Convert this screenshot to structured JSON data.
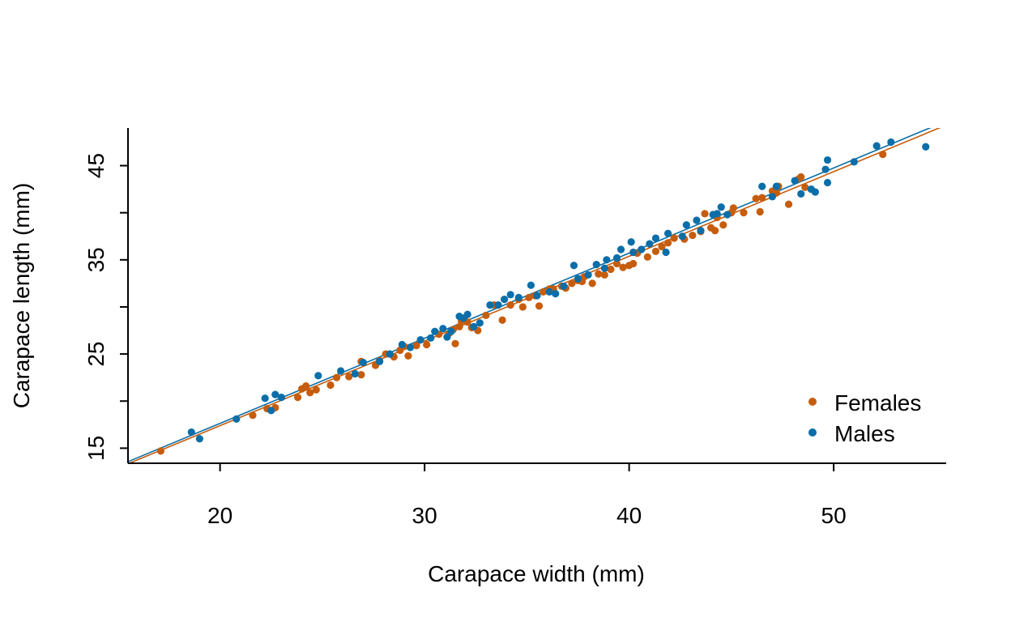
{
  "chart_data": {
    "type": "scatter",
    "title": "",
    "xlabel": "Carapace width (mm)",
    "ylabel": "Carapace length (mm)",
    "xlim": [
      15.5,
      55.5
    ],
    "ylim": [
      13.4,
      49.0
    ],
    "xticks": [
      20,
      30,
      40,
      50
    ],
    "xtick_labels": [
      "20",
      "30",
      "40",
      "50"
    ],
    "yticks": [
      15,
      20,
      25,
      30,
      35,
      40,
      45
    ],
    "ytick_labels": [
      "15",
      "",
      "25",
      "",
      "35",
      "",
      "45"
    ],
    "grid": false,
    "legend_position": "bottom-right",
    "series": [
      {
        "name": "Females",
        "color": "#C65D0D",
        "fit": {
          "slope": 0.899,
          "intercept": -0.589
        },
        "points": [
          [
            17.1,
            14.7
          ],
          [
            21.6,
            18.5
          ],
          [
            22.3,
            19.2
          ],
          [
            22.7,
            19.3
          ],
          [
            23.8,
            20.4
          ],
          [
            24.0,
            21.3
          ],
          [
            24.2,
            21.6
          ],
          [
            24.4,
            20.9
          ],
          [
            24.7,
            21.2
          ],
          [
            25.4,
            21.7
          ],
          [
            25.7,
            22.5
          ],
          [
            26.3,
            22.6
          ],
          [
            26.9,
            22.8
          ],
          [
            26.9,
            24.2
          ],
          [
            27.6,
            23.8
          ],
          [
            27.8,
            24.3
          ],
          [
            28.1,
            25.0
          ],
          [
            28.5,
            24.7
          ],
          [
            28.8,
            25.4
          ],
          [
            29.0,
            25.8
          ],
          [
            29.2,
            24.8
          ],
          [
            29.6,
            25.9
          ],
          [
            30.1,
            26.0
          ],
          [
            30.7,
            27.1
          ],
          [
            31.2,
            27.2
          ],
          [
            31.4,
            27.6
          ],
          [
            31.5,
            26.1
          ],
          [
            31.7,
            27.9
          ],
          [
            31.8,
            28.5
          ],
          [
            32.1,
            28.4
          ],
          [
            32.3,
            27.8
          ],
          [
            32.6,
            27.5
          ],
          [
            33.0,
            29.1
          ],
          [
            33.4,
            30.2
          ],
          [
            33.8,
            28.6
          ],
          [
            34.2,
            30.2
          ],
          [
            34.6,
            30.8
          ],
          [
            34.8,
            30.0
          ],
          [
            35.1,
            31.0
          ],
          [
            35.4,
            31.2
          ],
          [
            35.6,
            30.1
          ],
          [
            35.8,
            31.6
          ],
          [
            36.1,
            31.9
          ],
          [
            36.3,
            31.9
          ],
          [
            36.7,
            32.2
          ],
          [
            36.9,
            32.0
          ],
          [
            37.2,
            32.5
          ],
          [
            37.5,
            32.8
          ],
          [
            37.7,
            32.7
          ],
          [
            37.8,
            33.2
          ],
          [
            38.2,
            32.5
          ],
          [
            38.5,
            33.5
          ],
          [
            38.8,
            33.4
          ],
          [
            39.1,
            34.0
          ],
          [
            39.4,
            34.6
          ],
          [
            39.7,
            34.2
          ],
          [
            40.0,
            34.4
          ],
          [
            40.2,
            34.6
          ],
          [
            40.4,
            35.7
          ],
          [
            40.9,
            35.3
          ],
          [
            41.3,
            35.9
          ],
          [
            41.6,
            36.4
          ],
          [
            41.9,
            36.8
          ],
          [
            42.2,
            37.3
          ],
          [
            42.7,
            37.2
          ],
          [
            43.1,
            37.6
          ],
          [
            43.5,
            38.0
          ],
          [
            43.7,
            39.9
          ],
          [
            44.0,
            38.4
          ],
          [
            44.2,
            38.1
          ],
          [
            44.3,
            39.5
          ],
          [
            44.6,
            38.7
          ],
          [
            45.0,
            40.0
          ],
          [
            45.1,
            40.5
          ],
          [
            45.6,
            40.0
          ],
          [
            46.2,
            41.5
          ],
          [
            46.4,
            40.1
          ],
          [
            46.5,
            41.6
          ],
          [
            47.0,
            42.3
          ],
          [
            47.2,
            42.1
          ],
          [
            47.3,
            42.8
          ],
          [
            47.8,
            40.9
          ],
          [
            48.3,
            43.6
          ],
          [
            48.4,
            43.8
          ],
          [
            48.6,
            42.7
          ],
          [
            52.4,
            46.2
          ]
        ]
      },
      {
        "name": "Males",
        "color": "#0B6EA8",
        "fit": {
          "slope": 0.904,
          "intercept": -0.445
        },
        "points": [
          [
            18.6,
            16.7
          ],
          [
            19.0,
            16.0
          ],
          [
            20.8,
            18.1
          ],
          [
            22.2,
            20.3
          ],
          [
            22.5,
            19.0
          ],
          [
            22.7,
            20.7
          ],
          [
            23.0,
            20.4
          ],
          [
            24.8,
            22.7
          ],
          [
            25.9,
            23.2
          ],
          [
            26.6,
            22.9
          ],
          [
            27.0,
            24.1
          ],
          [
            27.8,
            24.2
          ],
          [
            28.3,
            25.0
          ],
          [
            28.9,
            26.0
          ],
          [
            29.3,
            25.7
          ],
          [
            29.8,
            26.5
          ],
          [
            30.3,
            26.7
          ],
          [
            30.5,
            27.4
          ],
          [
            30.9,
            27.7
          ],
          [
            31.1,
            26.8
          ],
          [
            31.3,
            27.4
          ],
          [
            31.7,
            29.0
          ],
          [
            31.9,
            28.8
          ],
          [
            32.1,
            29.2
          ],
          [
            32.4,
            27.9
          ],
          [
            32.7,
            28.3
          ],
          [
            33.2,
            30.2
          ],
          [
            33.6,
            30.2
          ],
          [
            33.9,
            30.8
          ],
          [
            34.2,
            31.3
          ],
          [
            34.6,
            31.0
          ],
          [
            35.2,
            32.3
          ],
          [
            35.5,
            31.2
          ],
          [
            36.1,
            31.6
          ],
          [
            36.4,
            31.4
          ],
          [
            36.8,
            32.2
          ],
          [
            37.3,
            34.4
          ],
          [
            37.5,
            33.0
          ],
          [
            38.0,
            33.4
          ],
          [
            38.4,
            34.5
          ],
          [
            38.8,
            34.1
          ],
          [
            38.9,
            35.0
          ],
          [
            39.4,
            35.2
          ],
          [
            39.6,
            36.1
          ],
          [
            40.1,
            36.9
          ],
          [
            40.2,
            35.8
          ],
          [
            40.6,
            36.1
          ],
          [
            41.0,
            36.7
          ],
          [
            41.3,
            37.3
          ],
          [
            41.8,
            35.8
          ],
          [
            41.9,
            37.8
          ],
          [
            42.6,
            37.5
          ],
          [
            42.8,
            38.7
          ],
          [
            43.3,
            39.2
          ],
          [
            43.5,
            38.1
          ],
          [
            44.1,
            39.8
          ],
          [
            44.3,
            39.9
          ],
          [
            44.5,
            40.6
          ],
          [
            44.8,
            39.8
          ],
          [
            46.5,
            42.8
          ],
          [
            47.0,
            41.7
          ],
          [
            47.2,
            42.8
          ],
          [
            48.1,
            43.4
          ],
          [
            48.4,
            42.0
          ],
          [
            48.9,
            42.5
          ],
          [
            49.1,
            42.2
          ],
          [
            49.6,
            44.6
          ],
          [
            49.7,
            45.6
          ],
          [
            49.7,
            43.2
          ],
          [
            51.0,
            45.4
          ],
          [
            52.1,
            47.1
          ],
          [
            52.8,
            47.5
          ],
          [
            54.5,
            47.0
          ]
        ]
      }
    ]
  }
}
